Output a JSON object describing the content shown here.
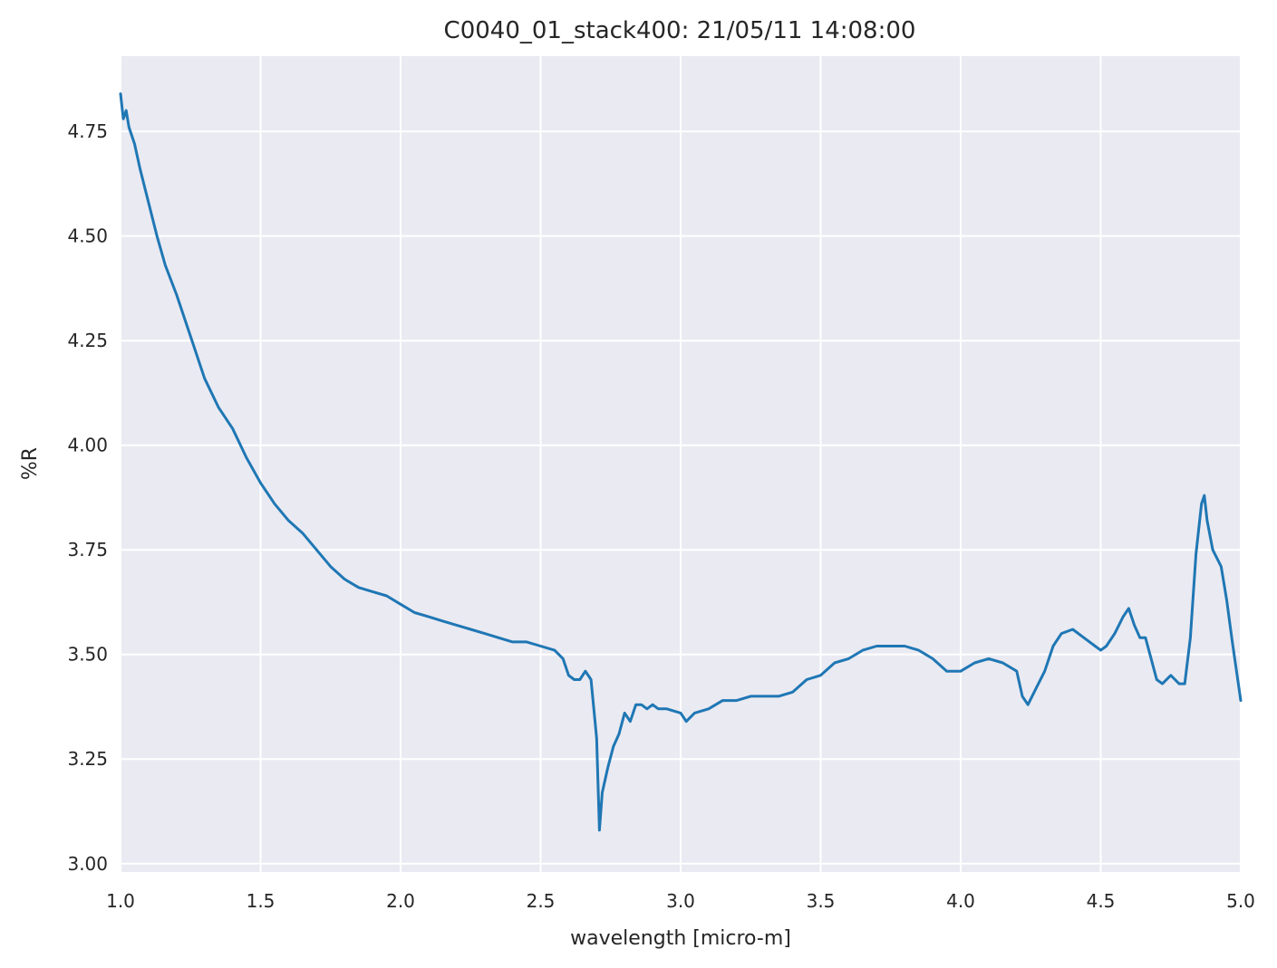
{
  "chart_data": {
    "type": "line",
    "title": "C0040_01_stack400:  21/05/11 14:08:00",
    "xlabel": "wavelength [micro-m]",
    "ylabel": "%R",
    "xlim": [
      1.0,
      5.0
    ],
    "ylim": [
      2.98,
      4.93
    ],
    "xticks": [
      1.0,
      1.5,
      2.0,
      2.5,
      3.0,
      3.5,
      4.0,
      4.5,
      5.0
    ],
    "xtick_labels": [
      "1.0",
      "1.5",
      "2.0",
      "2.5",
      "3.0",
      "3.5",
      "4.0",
      "4.5",
      "5.0"
    ],
    "yticks": [
      3.0,
      3.25,
      3.5,
      3.75,
      4.0,
      4.25,
      4.5,
      4.75
    ],
    "ytick_labels": [
      "3.00",
      "3.25",
      "3.50",
      "3.75",
      "4.00",
      "4.25",
      "4.50",
      "4.75"
    ],
    "grid": true,
    "background": "#eaeaf2",
    "grid_color": "#ffffff",
    "line_color": "#1f77b4",
    "series": [
      {
        "x": [
          1.0,
          1.01,
          1.02,
          1.03,
          1.05,
          1.07,
          1.1,
          1.13,
          1.16,
          1.2,
          1.25,
          1.3,
          1.35,
          1.4,
          1.45,
          1.5,
          1.55,
          1.6,
          1.65,
          1.7,
          1.75,
          1.8,
          1.85,
          1.9,
          1.95,
          2.0,
          2.05,
          2.1,
          2.15,
          2.2,
          2.25,
          2.3,
          2.35,
          2.4,
          2.45,
          2.5,
          2.55,
          2.58,
          2.6,
          2.62,
          2.64,
          2.66,
          2.68,
          2.7,
          2.71,
          2.72,
          2.74,
          2.76,
          2.78,
          2.8,
          2.82,
          2.84,
          2.86,
          2.88,
          2.9,
          2.92,
          2.95,
          3.0,
          3.02,
          3.05,
          3.1,
          3.15,
          3.2,
          3.25,
          3.3,
          3.35,
          3.4,
          3.45,
          3.5,
          3.55,
          3.6,
          3.65,
          3.7,
          3.75,
          3.8,
          3.85,
          3.9,
          3.95,
          4.0,
          4.05,
          4.1,
          4.15,
          4.2,
          4.22,
          4.24,
          4.27,
          4.3,
          4.33,
          4.36,
          4.4,
          4.44,
          4.48,
          4.5,
          4.52,
          4.55,
          4.58,
          4.6,
          4.62,
          4.64,
          4.66,
          4.68,
          4.7,
          4.72,
          4.75,
          4.78,
          4.8,
          4.82,
          4.84,
          4.86,
          4.87,
          4.88,
          4.9,
          4.93,
          4.95,
          4.97,
          5.0
        ],
        "y": [
          4.84,
          4.78,
          4.8,
          4.76,
          4.72,
          4.66,
          4.58,
          4.5,
          4.43,
          4.36,
          4.26,
          4.16,
          4.09,
          4.04,
          3.97,
          3.91,
          3.86,
          3.82,
          3.79,
          3.75,
          3.71,
          3.68,
          3.66,
          3.65,
          3.64,
          3.62,
          3.6,
          3.59,
          3.58,
          3.57,
          3.56,
          3.55,
          3.54,
          3.53,
          3.53,
          3.52,
          3.51,
          3.49,
          3.45,
          3.44,
          3.44,
          3.46,
          3.44,
          3.3,
          3.08,
          3.17,
          3.23,
          3.28,
          3.31,
          3.36,
          3.34,
          3.38,
          3.38,
          3.37,
          3.38,
          3.37,
          3.37,
          3.36,
          3.34,
          3.36,
          3.37,
          3.39,
          3.39,
          3.4,
          3.4,
          3.4,
          3.41,
          3.44,
          3.45,
          3.48,
          3.49,
          3.51,
          3.52,
          3.52,
          3.52,
          3.51,
          3.49,
          3.46,
          3.46,
          3.48,
          3.49,
          3.48,
          3.46,
          3.4,
          3.38,
          3.42,
          3.46,
          3.52,
          3.55,
          3.56,
          3.54,
          3.52,
          3.51,
          3.52,
          3.55,
          3.59,
          3.61,
          3.57,
          3.54,
          3.54,
          3.49,
          3.44,
          3.43,
          3.45,
          3.43,
          3.43,
          3.54,
          3.74,
          3.86,
          3.88,
          3.82,
          3.75,
          3.71,
          3.63,
          3.53,
          3.39
        ]
      }
    ]
  }
}
